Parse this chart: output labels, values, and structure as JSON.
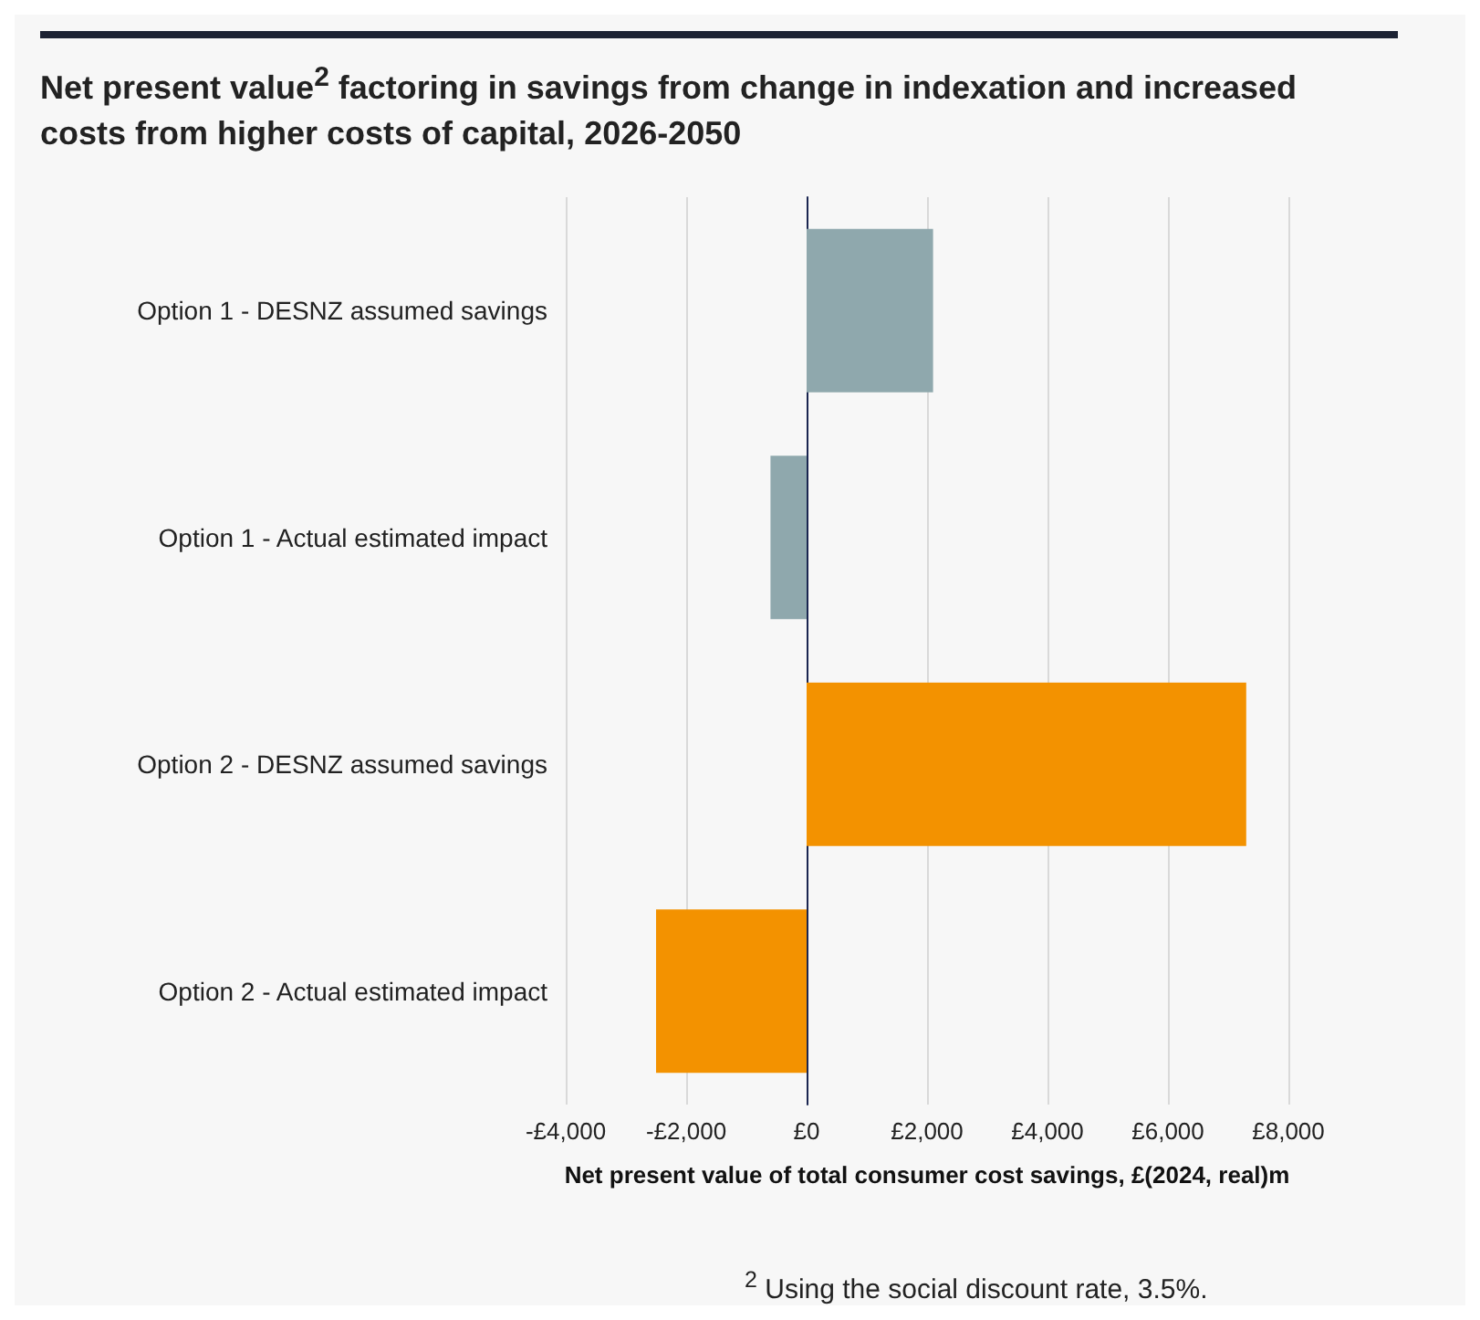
{
  "chart_data": {
    "type": "bar",
    "orientation": "horizontal",
    "title": "Net present value$^{2}$ factoring in savings from change in indexation and increased costs from higher costs of capital, 2026-2050",
    "xlabel": "Net present value of total consumer cost savings, £(2024, real)m",
    "categories": [
      "Option 1 - DESNZ assumed savings",
      "Option 1 - Actual estimated impact",
      "Option 2 - DESNZ assumed savings",
      "Option 2 - Actual estimated impact"
    ],
    "values": [
      2100,
      -600,
      7300,
      -2500
    ],
    "colors": [
      "#8fa8ad",
      "#8fa8ad",
      "#f39200",
      "#f39200"
    ],
    "xlim": [
      -4000,
      8000
    ],
    "xticks": [
      {
        "value": -4000,
        "label": "-£4,000"
      },
      {
        "value": -2000,
        "label": "-£2,000"
      },
      {
        "value": 0,
        "label": "£0"
      },
      {
        "value": 2000,
        "label": "£2,000"
      },
      {
        "value": 4000,
        "label": "£4,000"
      },
      {
        "value": 6000,
        "label": "£6,000"
      },
      {
        "value": 8000,
        "label": "£8,000"
      }
    ],
    "grid": "x",
    "annotations": [
      "$^{2}$ Using the social discount rate, 3.5%."
    ]
  }
}
